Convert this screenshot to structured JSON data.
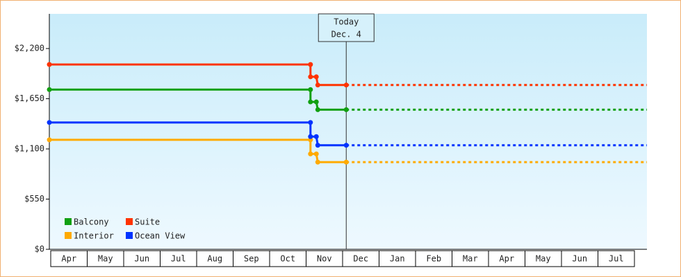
{
  "chart_data": {
    "type": "step-line",
    "ylim": [
      0,
      2580
    ],
    "yticks": [
      {
        "value": 0,
        "label": "$0"
      },
      {
        "value": 550,
        "label": "$550"
      },
      {
        "value": 1100,
        "label": "$1,100"
      },
      {
        "value": 1650,
        "label": "$1,650"
      },
      {
        "value": 2200,
        "label": "$2,200"
      }
    ],
    "xlim": [
      0,
      16.35
    ],
    "xticks": [
      {
        "value": 0.5,
        "label": "Apr"
      },
      {
        "value": 1.5,
        "label": "May"
      },
      {
        "value": 2.5,
        "label": "Jun"
      },
      {
        "value": 3.5,
        "label": "Jul"
      },
      {
        "value": 4.5,
        "label": "Aug"
      },
      {
        "value": 5.5,
        "label": "Sep"
      },
      {
        "value": 6.5,
        "label": "Oct"
      },
      {
        "value": 7.5,
        "label": "Nov"
      },
      {
        "value": 8.5,
        "label": "Dec"
      },
      {
        "value": 9.5,
        "label": "Jan"
      },
      {
        "value": 10.5,
        "label": "Feb"
      },
      {
        "value": 11.5,
        "label": "Mar"
      },
      {
        "value": 12.5,
        "label": "Apr"
      },
      {
        "value": 13.5,
        "label": "May"
      },
      {
        "value": 14.5,
        "label": "Jun"
      },
      {
        "value": 15.5,
        "label": "Jul"
      }
    ],
    "series": [
      {
        "name": "Balcony",
        "color": "#11a011",
        "x": [
          0,
          7.12,
          7.12,
          7.28,
          7.32,
          8.1
        ],
        "values": [
          1750,
          1750,
          1615,
          1615,
          1530,
          1530
        ]
      },
      {
        "name": "Suite",
        "color": "#ff3300",
        "x": [
          0,
          7.12,
          7.12,
          7.28,
          7.32,
          8.1
        ],
        "values": [
          2025,
          2025,
          1890,
          1890,
          1800,
          1800
        ]
      },
      {
        "name": "Interior",
        "color": "#ffaa00",
        "x": [
          0,
          7.12,
          7.12,
          7.28,
          7.32,
          8.1
        ],
        "values": [
          1200,
          1200,
          1045,
          1045,
          955,
          955
        ]
      },
      {
        "name": "Ocean View",
        "color": "#0033ff",
        "x": [
          0,
          7.12,
          7.12,
          7.28,
          7.32,
          8.1
        ],
        "values": [
          1390,
          1390,
          1235,
          1235,
          1140,
          1140
        ]
      }
    ],
    "today": {
      "x": 8.1,
      "label": [
        "Today",
        "Dec. 4"
      ]
    }
  }
}
